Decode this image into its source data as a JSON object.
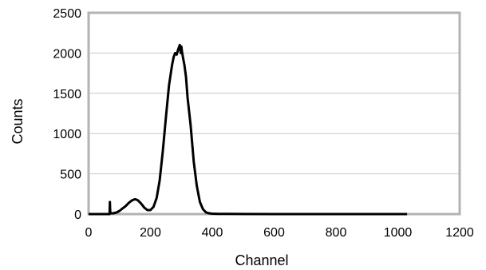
{
  "chart_data": {
    "type": "line",
    "title": "",
    "xlabel": "Channel",
    "ylabel": "Counts",
    "xlim": [
      0,
      1200
    ],
    "ylim": [
      0,
      2500
    ],
    "x_ticks": [
      0,
      200,
      400,
      600,
      800,
      1000,
      1200
    ],
    "y_ticks": [
      0,
      500,
      1000,
      1500,
      2000,
      2500
    ],
    "grid": "horizontal",
    "colors": {
      "line": "#000000",
      "frame": "#b3b3b3",
      "grid": "#c8c8c8"
    },
    "series": [
      {
        "x": [
          0,
          68,
          69,
          70,
          71,
          73,
          80,
          90,
          100,
          110,
          120,
          130,
          140,
          150,
          155,
          160,
          170,
          180,
          190,
          200,
          210,
          220,
          230,
          240,
          250,
          260,
          270,
          275,
          280,
          285,
          290,
          295,
          298,
          300,
          302,
          305,
          310,
          315,
          320,
          330,
          340,
          350,
          360,
          370,
          380,
          390,
          400,
          420,
          450,
          500,
          600,
          700,
          800,
          900,
          1000,
          1030
        ],
        "y": [
          0,
          0,
          150,
          30,
          15,
          10,
          10,
          20,
          40,
          70,
          100,
          140,
          170,
          185,
          180,
          170,
          130,
          80,
          50,
          50,
          90,
          200,
          420,
          780,
          1200,
          1600,
          1850,
          1950,
          2000,
          1980,
          2050,
          2100,
          2000,
          2080,
          2020,
          1950,
          1850,
          1700,
          1450,
          1100,
          650,
          350,
          150,
          60,
          20,
          10,
          5,
          3,
          2,
          1,
          0,
          0,
          0,
          0,
          0,
          0
        ]
      }
    ]
  }
}
